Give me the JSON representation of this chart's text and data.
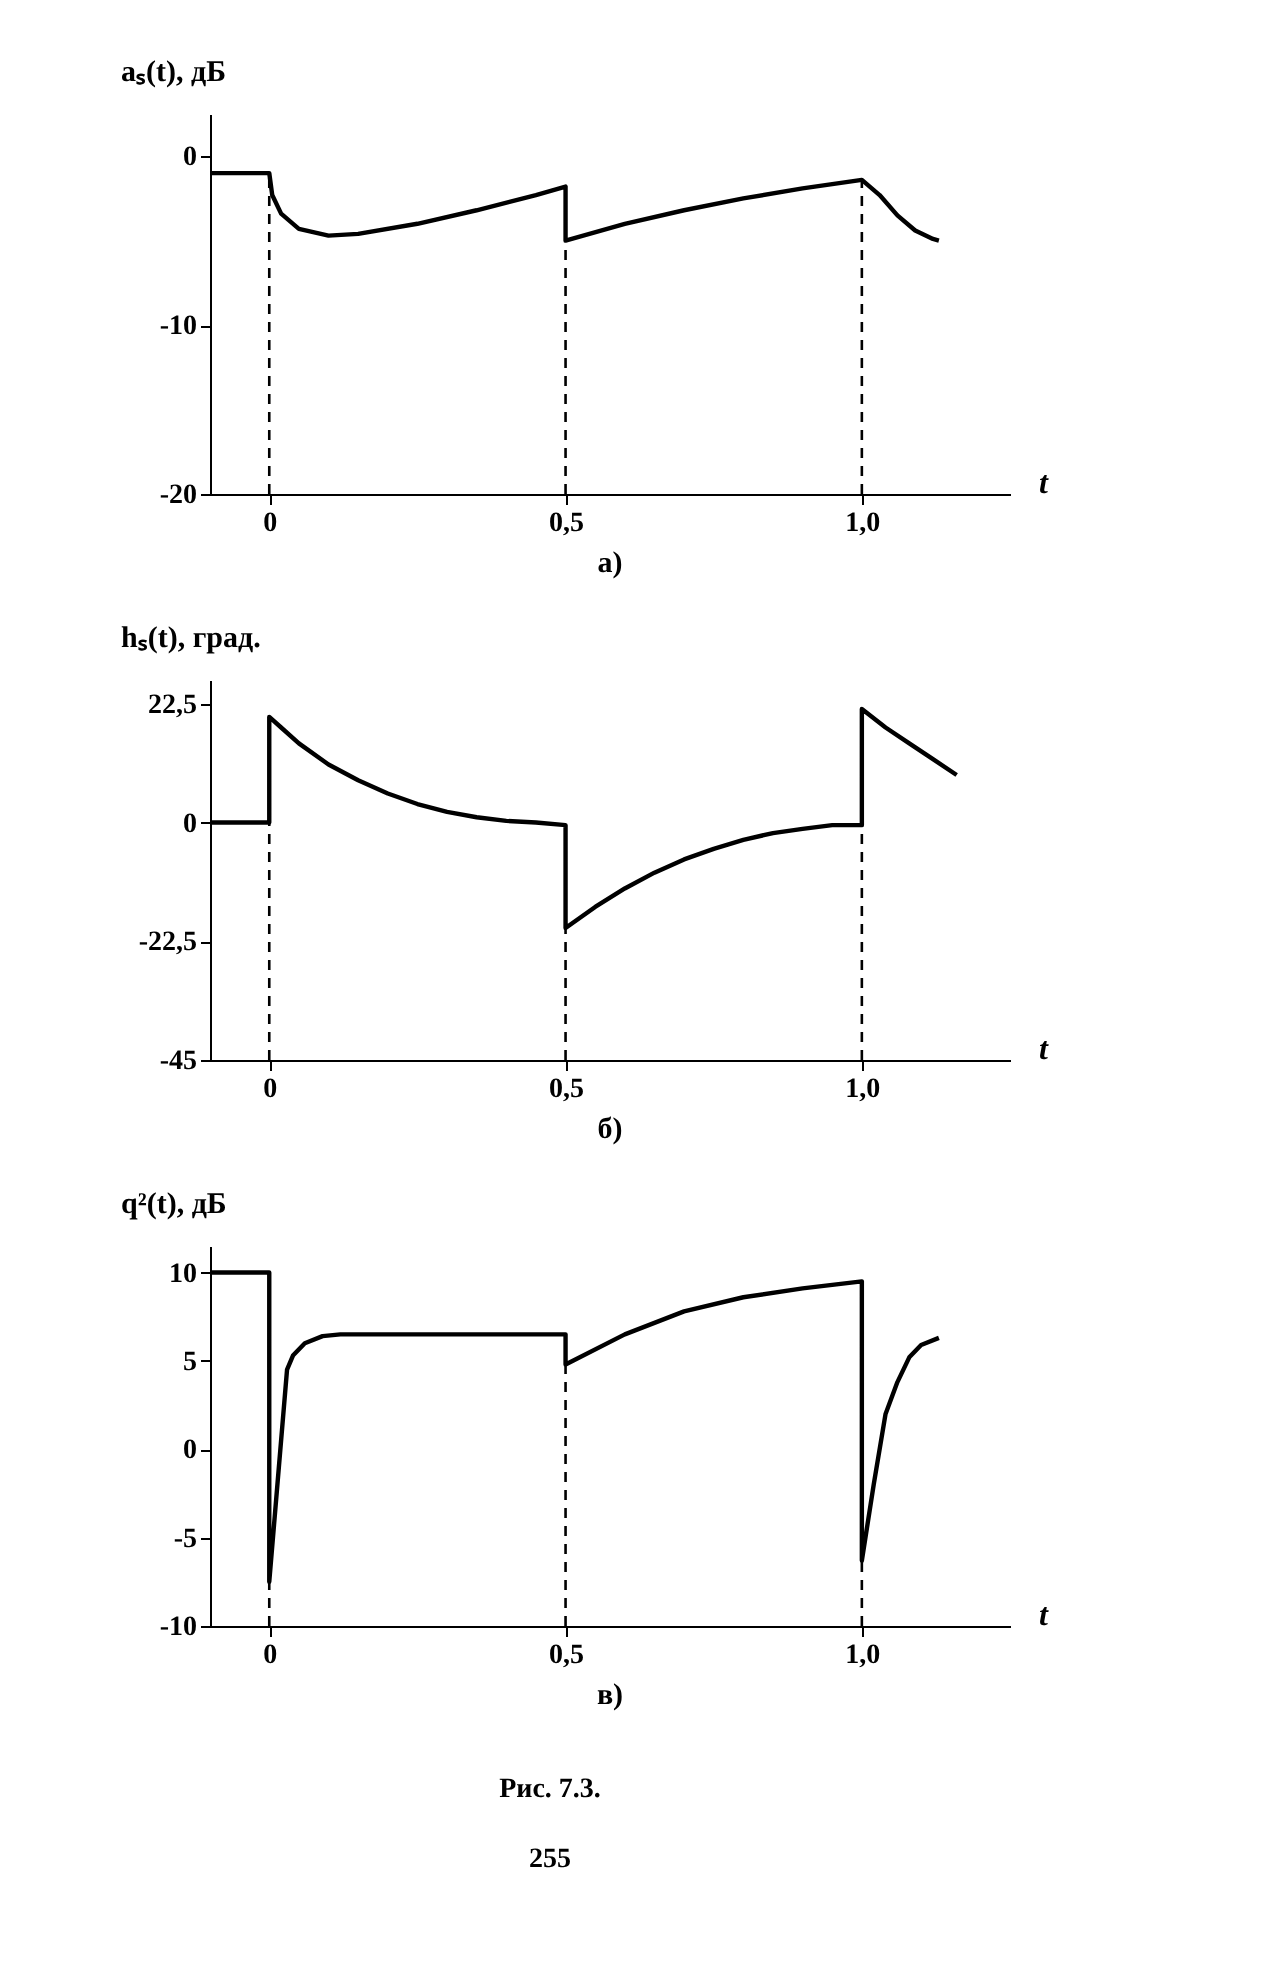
{
  "chart_data": [
    {
      "type": "line",
      "title": "а)",
      "xlabel": "t",
      "ylabel": "aₛ(t), дБ",
      "xlim": [
        -0.1,
        1.25
      ],
      "ylim": [
        -20,
        2.5
      ],
      "xticks": [
        {
          "value": 0,
          "label": "0"
        },
        {
          "value": 0.5,
          "label": "0,5"
        },
        {
          "value": 1.0,
          "label": "1,0"
        }
      ],
      "yticks": [
        0,
        -10,
        -20
      ],
      "grid": false,
      "line_style": "solid",
      "marker": "none",
      "series": [
        {
          "color": "#000000",
          "x": [
            -0.1,
            0,
            0.005,
            0.02,
            0.05,
            0.1,
            0.15,
            0.25,
            0.35,
            0.45,
            0.5,
            0.5,
            0.6,
            0.7,
            0.8,
            0.9,
            1.0,
            1.03,
            1.06,
            1.09,
            1.12,
            1.13
          ],
          "values": [
            -1,
            -1,
            -2.3,
            -3.4,
            -4.3,
            -4.7,
            -4.6,
            -4.0,
            -3.2,
            -2.3,
            -1.8,
            -5.0,
            -4.0,
            -3.2,
            -2.5,
            -1.9,
            -1.4,
            -2.3,
            -3.5,
            -4.4,
            -4.9,
            -5.0
          ]
        }
      ],
      "ref_lines": [
        {
          "axis": "x",
          "value": 0,
          "line_style": "dashed"
        },
        {
          "axis": "x",
          "value": 0.5,
          "line_style": "dashed"
        },
        {
          "axis": "x",
          "value": 1.0,
          "line_style": "dashed"
        }
      ]
    },
    {
      "type": "line",
      "title": "б)",
      "xlabel": "t",
      "ylabel": "hₛ(t), град.",
      "xlim": [
        -0.1,
        1.25
      ],
      "ylim": [
        -45,
        27
      ],
      "xticks": [
        {
          "value": 0,
          "label": "0"
        },
        {
          "value": 0.5,
          "label": "0,5"
        },
        {
          "value": 1.0,
          "label": "1,0"
        }
      ],
      "yticks": [
        {
          "value": 22.5,
          "label": "22,5"
        },
        0,
        {
          "value": -22.5,
          "label": "-22,5"
        },
        -45
      ],
      "grid": false,
      "line_style": "solid",
      "marker": "none",
      "series": [
        {
          "color": "#000000",
          "x": [
            -0.1,
            0,
            0,
            0.02,
            0.05,
            0.1,
            0.15,
            0.2,
            0.25,
            0.3,
            0.35,
            0.4,
            0.45,
            0.5,
            0.5,
            0.55,
            0.6,
            0.65,
            0.7,
            0.75,
            0.8,
            0.85,
            0.9,
            0.95,
            1.0,
            1.0,
            1.04,
            1.08,
            1.12,
            1.16
          ],
          "values": [
            0,
            0,
            20,
            18,
            15,
            11,
            8,
            5.5,
            3.5,
            2,
            1,
            0.3,
            0,
            -0.5,
            -20,
            -16,
            -12.5,
            -9.5,
            -7,
            -5,
            -3.3,
            -2,
            -1.2,
            -0.5,
            -0.5,
            21.5,
            18,
            15,
            12,
            9
          ]
        }
      ],
      "ref_lines": [
        {
          "axis": "x",
          "value": 0,
          "line_style": "dashed"
        },
        {
          "axis": "x",
          "value": 0.5,
          "line_style": "dashed"
        },
        {
          "axis": "x",
          "value": 1.0,
          "line_style": "dashed"
        }
      ]
    },
    {
      "type": "line",
      "title": "в)",
      "xlabel": "t",
      "ylabel": "q²(t), дБ",
      "xlim": [
        -0.1,
        1.25
      ],
      "ylim": [
        -10,
        11.5
      ],
      "xticks": [
        {
          "value": 0,
          "label": "0"
        },
        {
          "value": 0.5,
          "label": "0,5"
        },
        {
          "value": 1.0,
          "label": "1,0"
        }
      ],
      "yticks": [
        10,
        5,
        0,
        -5,
        -10
      ],
      "grid": false,
      "line_style": "solid",
      "marker": "none",
      "series": [
        {
          "color": "#000000",
          "x": [
            -0.1,
            0,
            0,
            0.03,
            0.04,
            0.06,
            0.09,
            0.12,
            0.5,
            0.5,
            0.6,
            0.7,
            0.8,
            0.9,
            1.0,
            1.0,
            1.02,
            1.04,
            1.06,
            1.08,
            1.1,
            1.13
          ],
          "values": [
            10,
            10,
            -7.5,
            4.5,
            5.3,
            6,
            6.4,
            6.5,
            6.5,
            4.8,
            6.5,
            7.8,
            8.6,
            9.1,
            9.5,
            -6.3,
            -2,
            2,
            3.8,
            5.2,
            5.9,
            6.3
          ]
        }
      ],
      "ref_lines": [
        {
          "axis": "x",
          "value": 0,
          "line_style": "dashed"
        },
        {
          "axis": "x",
          "value": 0.5,
          "line_style": "dashed"
        },
        {
          "axis": "x",
          "value": 1.0,
          "line_style": "dashed"
        }
      ],
      "annotations": [
        "Рис. 7.3.",
        "255"
      ]
    }
  ]
}
